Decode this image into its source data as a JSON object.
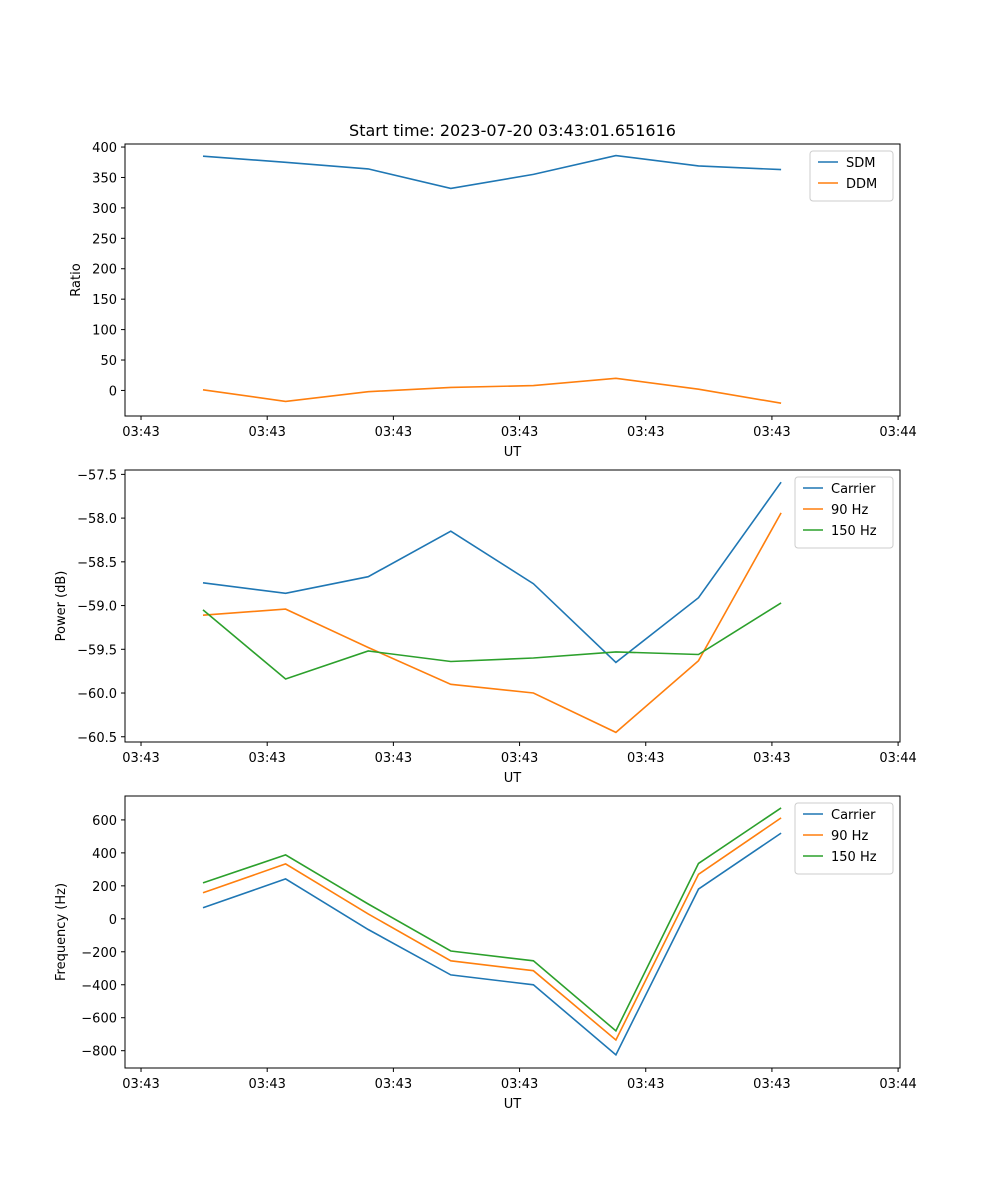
{
  "chart_data": [
    {
      "type": "line",
      "title": "Start time: 2023-07-20 03:43:01.651616",
      "xlabel": "UT",
      "ylabel": "Ratio",
      "x": [
        0,
        1,
        2,
        3,
        4,
        5,
        6,
        7
      ],
      "xlim": [
        -0.945,
        8.44
      ],
      "xticks": [
        -0.751,
        0.777,
        2.305,
        3.833,
        5.361,
        6.889,
        8.417
      ],
      "xticklabels": [
        "03:43",
        "03:43",
        "03:43",
        "03:43",
        "03:43",
        "03:43",
        "03:44"
      ],
      "ylim": [
        -42,
        405
      ],
      "yticks": [
        0,
        50,
        100,
        150,
        200,
        250,
        300,
        350,
        400
      ],
      "yticklabels": [
        "0",
        "50",
        "100",
        "150",
        "200",
        "250",
        "300",
        "350",
        "400"
      ],
      "legend": "top-right",
      "series": [
        {
          "name": "SDM",
          "color": "#1f77b4",
          "values": [
            385,
            375,
            364,
            332,
            355,
            386,
            369,
            363
          ]
        },
        {
          "name": "DDM",
          "color": "#ff7f0e",
          "values": [
            1,
            -18,
            -2,
            5,
            8,
            20,
            2,
            -21
          ]
        }
      ]
    },
    {
      "type": "line",
      "title": "",
      "xlabel": "UT",
      "ylabel": "Power (dB)",
      "x": [
        0,
        1,
        2,
        3,
        4,
        5,
        6,
        7
      ],
      "xlim": [
        -0.945,
        8.44
      ],
      "xticks": [
        -0.751,
        0.777,
        2.305,
        3.833,
        5.361,
        6.889,
        8.417
      ],
      "xticklabels": [
        "03:43",
        "03:43",
        "03:43",
        "03:43",
        "03:43",
        "03:43",
        "03:44"
      ],
      "ylim": [
        -60.56,
        -57.45
      ],
      "yticks": [
        -57.5,
        -58.0,
        -58.5,
        -59.0,
        -59.5,
        -60.0,
        -60.5
      ],
      "yticklabels": [
        "−57.5",
        "−58.0",
        "−58.5",
        "−59.0",
        "−59.5",
        "−60.0",
        "−60.5"
      ],
      "legend": "top-right",
      "series": [
        {
          "name": "Carrier",
          "color": "#1f77b4",
          "values": [
            -58.74,
            -58.86,
            -58.67,
            -58.15,
            -58.75,
            -59.65,
            -58.91,
            -57.59
          ]
        },
        {
          "name": "90 Hz",
          "color": "#ff7f0e",
          "values": [
            -59.11,
            -59.04,
            -59.48,
            -59.9,
            -60.0,
            -60.45,
            -59.63,
            -57.94
          ]
        },
        {
          "name": "150 Hz",
          "color": "#2ca02c",
          "values": [
            -59.05,
            -59.84,
            -59.52,
            -59.64,
            -59.6,
            -59.53,
            -59.56,
            -58.97
          ]
        }
      ]
    },
    {
      "type": "line",
      "title": "",
      "xlabel": "UT",
      "ylabel": "Frequency (Hz)",
      "x": [
        0,
        1,
        2,
        3,
        4,
        5,
        6,
        7
      ],
      "xlim": [
        -0.945,
        8.44
      ],
      "xticks": [
        -0.751,
        0.777,
        2.305,
        3.833,
        5.361,
        6.889,
        8.417
      ],
      "xticklabels": [
        "03:43",
        "03:43",
        "03:43",
        "03:43",
        "03:43",
        "03:43",
        "03:44"
      ],
      "ylim": [
        -905,
        745
      ],
      "yticks": [
        600,
        400,
        200,
        0,
        -200,
        -400,
        -600,
        -800
      ],
      "yticklabels": [
        "600",
        "400",
        "200",
        "0",
        "−200",
        "−400",
        "−600",
        "−800"
      ],
      "legend": "top-right",
      "series": [
        {
          "name": "Carrier",
          "color": "#1f77b4",
          "values": [
            67,
            242,
            -65,
            -340,
            -400,
            -825,
            180,
            520
          ]
        },
        {
          "name": "90 Hz",
          "color": "#ff7f0e",
          "values": [
            158,
            333,
            30,
            -255,
            -315,
            -735,
            270,
            612
          ]
        },
        {
          "name": "150 Hz",
          "color": "#2ca02c",
          "values": [
            218,
            388,
            90,
            -195,
            -255,
            -680,
            336,
            673
          ]
        }
      ]
    }
  ]
}
